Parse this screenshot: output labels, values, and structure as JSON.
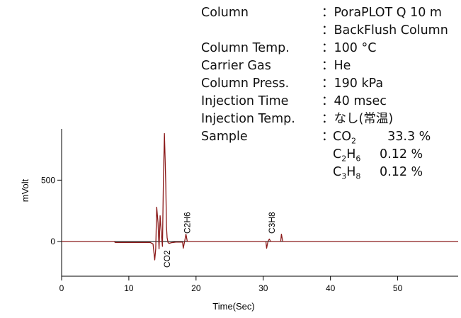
{
  "conditions": [
    {
      "label": "Column",
      "value": "：PoraPLOT Q 10 m"
    },
    {
      "label": "",
      "value": "：BackFlush Column"
    },
    {
      "label": "Column Temp.",
      "value": "：100 °C"
    },
    {
      "label": "Carrier Gas",
      "value": "：He"
    },
    {
      "label": "Column Press.",
      "value": "：190 kPa"
    },
    {
      "label": "Injection Time",
      "value": "：40 msec"
    },
    {
      "label": "Injection Temp.",
      "value": "：なし(常温)"
    }
  ],
  "sample": {
    "label": "Sample",
    "colon": "：",
    "components": [
      {
        "compound": "CO",
        "sub": "2",
        "conc": "33.3 %"
      },
      {
        "compound": "C",
        "sub": "2",
        "compound2": "H",
        "sub2": "6",
        "conc": "0.12 %"
      },
      {
        "compound": "C",
        "sub": "3",
        "compound2": "H",
        "sub2": "8",
        "conc": "0.12 %"
      }
    ]
  },
  "chart_data": {
    "type": "line",
    "xlabel": "Time(Sec)",
    "ylabel": "mVolt",
    "xlim": [
      0,
      59
    ],
    "ylim": [
      -300,
      900
    ],
    "xticks": [
      0,
      10,
      20,
      30,
      40,
      50
    ],
    "yticks": [
      0,
      500
    ],
    "grid": false,
    "line_color": "#8b1a1a",
    "baseline_color": "#000000",
    "series": [
      {
        "x": [
          0,
          7.8,
          8.0,
          13.2,
          13.6,
          13.85,
          14.0,
          14.15,
          14.35,
          14.5,
          14.65,
          14.85,
          15.0,
          15.15,
          15.3,
          15.5,
          15.6,
          15.7,
          15.85,
          16.0,
          16.3,
          17.0,
          18.0,
          18.1,
          18.3,
          18.5,
          18.7,
          19.0,
          22.0,
          30.4,
          30.5,
          30.7,
          30.9,
          31.1,
          32.6,
          32.7,
          32.9,
          33.1,
          59
        ],
        "y": [
          0,
          0,
          -8,
          -8,
          -20,
          -150,
          -60,
          280,
          150,
          -60,
          210,
          60,
          -40,
          520,
          880,
          470,
          120,
          30,
          -10,
          -15,
          -10,
          -5,
          -5,
          -55,
          0,
          60,
          0,
          0,
          0,
          0,
          -55,
          0,
          20,
          0,
          0,
          60,
          0,
          0,
          0
        ]
      }
    ],
    "peak_labels": [
      {
        "text": "CO2",
        "x": 15.6
      },
      {
        "text": "C2H6",
        "x": 18.6
      },
      {
        "text": "C3H8",
        "x": 31.2
      }
    ]
  }
}
